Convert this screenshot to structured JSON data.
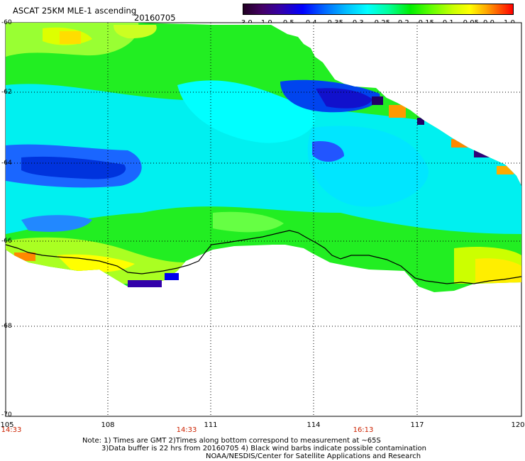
{
  "header": {
    "title": "ASCAT 25KM MLE-1 ascending",
    "date": "20160705"
  },
  "colorbar": {
    "labels": [
      "-3.0",
      "-1.0",
      "-0.5",
      "-0.4",
      "-0.35",
      "-0.3",
      "-0.25",
      "-0.2",
      "-0.15",
      "-0.1",
      "-0.05",
      "0.0",
      "1.0"
    ]
  },
  "axes": {
    "latitudes": [
      "-60",
      "-62",
      "-64",
      "-66",
      "-68",
      "-70"
    ],
    "longitudes": [
      "105",
      "108",
      "111",
      "114",
      "117",
      "120"
    ],
    "times": [
      "14:33",
      "14:33",
      "16:13"
    ]
  },
  "notes": {
    "line1": "Note: 1) Times are GMT 2)Times along bottom correspond to measurement at ~65S",
    "line2": "3)Data buffer is 22 hrs from 20160705 4) Black wind barbs indicate possible contamination",
    "line3": "NOAA/NESDIS/Center for Satellite Applications and Research"
  }
}
